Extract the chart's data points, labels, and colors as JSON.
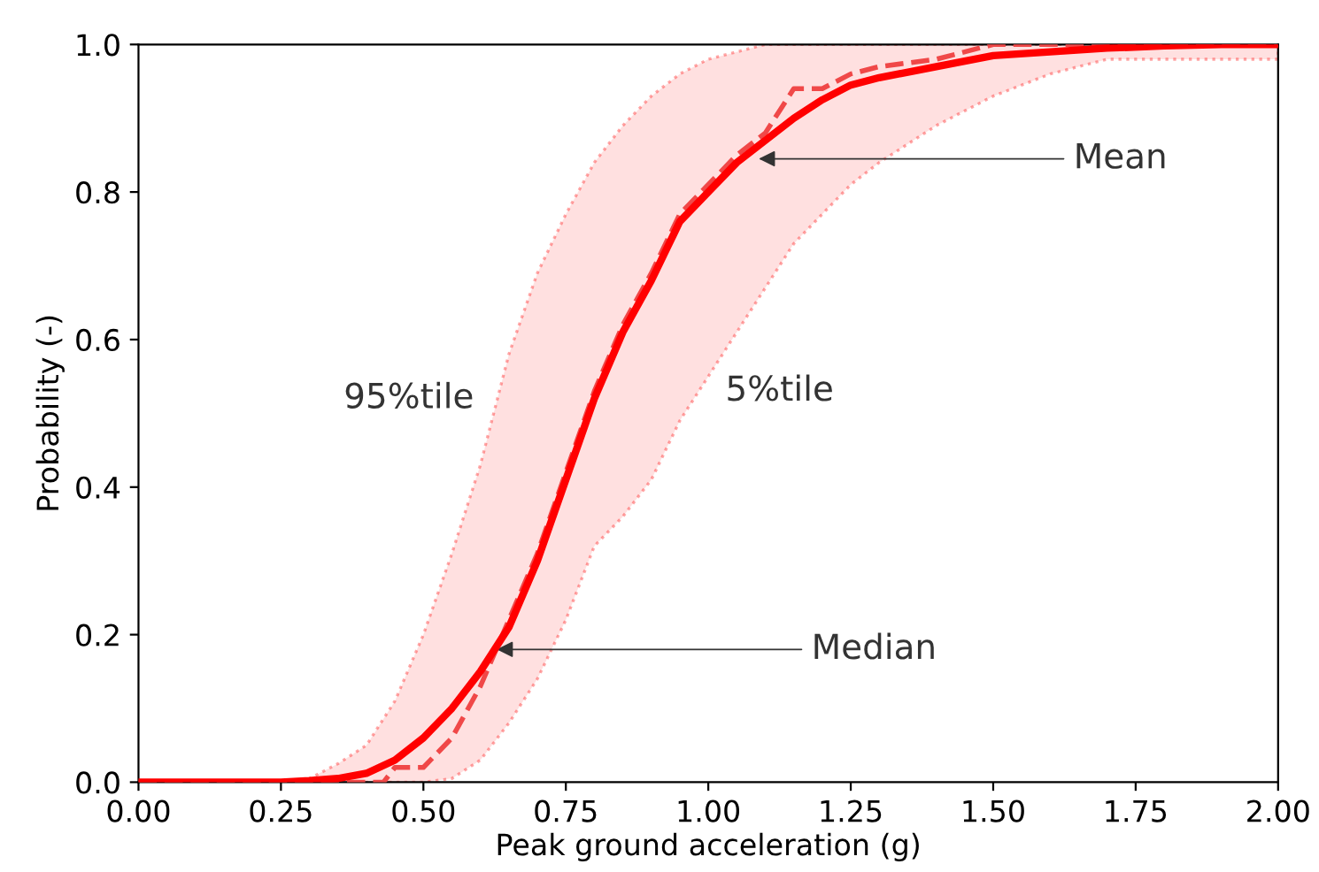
{
  "chart_data": {
    "type": "line",
    "xlabel": "Peak ground acceleration (g)",
    "ylabel": "Probability (-)",
    "xlim": [
      0,
      2
    ],
    "ylim": [
      0,
      1
    ],
    "xticks": [
      {
        "value": 0,
        "label": "0.00"
      },
      {
        "value": 0.25,
        "label": "0.25"
      },
      {
        "value": 0.5,
        "label": "0.50"
      },
      {
        "value": 0.75,
        "label": "0.75"
      },
      {
        "value": 1,
        "label": "1.00"
      },
      {
        "value": 1.25,
        "label": "1.25"
      },
      {
        "value": 1.5,
        "label": "1.50"
      },
      {
        "value": 1.75,
        "label": "1.75"
      },
      {
        "value": 2,
        "label": "2.00"
      }
    ],
    "yticks": [
      {
        "value": 0,
        "label": "0.0"
      },
      {
        "value": 0.2,
        "label": "0.2"
      },
      {
        "value": 0.4,
        "label": "0.4"
      },
      {
        "value": 0.6,
        "label": "0.6"
      },
      {
        "value": 0.8,
        "label": "0.8"
      },
      {
        "value": 1,
        "label": "1.0"
      }
    ],
    "grid": false,
    "legend": false,
    "series": [
      {
        "color": "#ff0000",
        "line_style": "solid",
        "x": [
          0,
          0.25,
          0.3,
          0.35,
          0.4,
          0.45,
          0.5,
          0.55,
          0.6,
          0.65,
          0.7,
          0.75,
          0.8,
          0.85,
          0.9,
          0.95,
          1.0,
          1.05,
          1.1,
          1.15,
          1.2,
          1.25,
          1.3,
          1.4,
          1.5,
          1.6,
          1.7,
          1.8,
          1.9,
          2.0
        ],
        "values": [
          0,
          0,
          0.002,
          0.005,
          0.012,
          0.03,
          0.06,
          0.1,
          0.15,
          0.21,
          0.3,
          0.41,
          0.52,
          0.61,
          0.68,
          0.76,
          0.8,
          0.84,
          0.87,
          0.9,
          0.925,
          0.945,
          0.955,
          0.97,
          0.985,
          0.99,
          0.995,
          0.998,
          1.0,
          1.0
        ],
        "upper": [
          0,
          0,
          0.005,
          0.025,
          0.05,
          0.11,
          0.2,
          0.31,
          0.43,
          0.58,
          0.69,
          0.77,
          0.84,
          0.89,
          0.93,
          0.96,
          0.98,
          0.99,
          1.0,
          1.0,
          1.0,
          1.0,
          1.0,
          1.0,
          1.0,
          1.0,
          1.0,
          1.0,
          1.0,
          1.0
        ],
        "lower": [
          0,
          0,
          0,
          0,
          0,
          0,
          0,
          0.005,
          0.03,
          0.08,
          0.14,
          0.22,
          0.32,
          0.36,
          0.41,
          0.49,
          0.55,
          0.61,
          0.67,
          0.73,
          0.77,
          0.81,
          0.84,
          0.89,
          0.93,
          0.96,
          0.98,
          0.98,
          0.98,
          0.98
        ]
      },
      {
        "color": "#f04848",
        "line_style": "dashed",
        "x": [
          0,
          0.43,
          0.45,
          0.5,
          0.55,
          0.6,
          0.65,
          0.7,
          0.75,
          0.8,
          0.85,
          0.9,
          0.95,
          1.0,
          1.05,
          1.1,
          1.15,
          1.2,
          1.25,
          1.3,
          1.4,
          1.5,
          2.0
        ],
        "values": [
          0,
          0,
          0.02,
          0.02,
          0.06,
          0.13,
          0.22,
          0.31,
          0.42,
          0.53,
          0.62,
          0.69,
          0.77,
          0.81,
          0.85,
          0.88,
          0.94,
          0.94,
          0.96,
          0.97,
          0.98,
          1.0,
          1.0
        ]
      }
    ],
    "annotations": [
      {
        "text": "Mean",
        "x": 1.08,
        "y": 0.845
      },
      {
        "text": "Median",
        "x": 0.62,
        "y": 0.18
      },
      "95%tile",
      "5%tile"
    ]
  }
}
